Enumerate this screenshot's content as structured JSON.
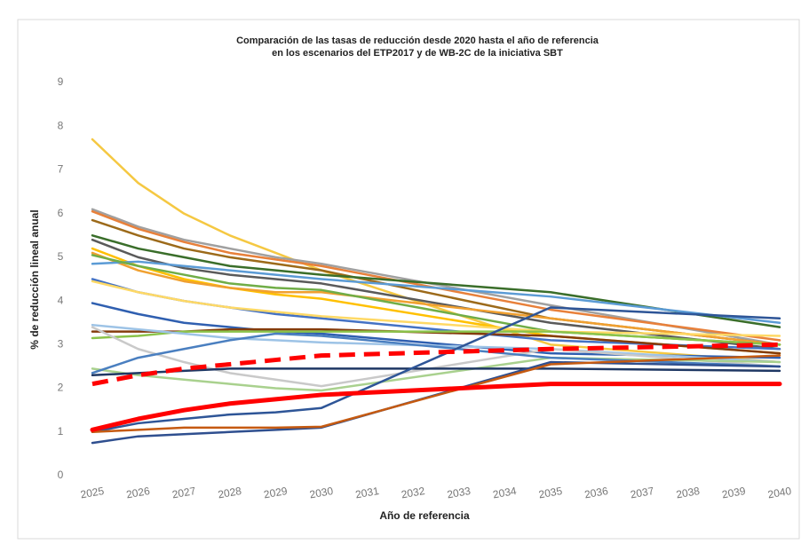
{
  "chart_data": {
    "type": "line",
    "title": [
      "Comparación de las tasas de reducción desde 2020 hasta el año de referencia",
      "en los escenarios del ETP2017 y de WB-2C de la iniciativa SBT"
    ],
    "x_label": "Año de referencia",
    "y_label": "% de reducción lineal anual",
    "x": [
      2025,
      2026,
      2027,
      2028,
      2029,
      2030,
      2035,
      2040
    ],
    "xlim": [
      2025,
      2040
    ],
    "xticks": [
      2025,
      2026,
      2027,
      2028,
      2029,
      2030,
      2031,
      2032,
      2033,
      2034,
      2035,
      2036,
      2037,
      2038,
      2039,
      2040
    ],
    "ylim": [
      0,
      9
    ],
    "yticks": [
      0,
      1,
      2,
      3,
      4,
      5,
      6,
      7,
      8,
      9
    ],
    "grid": false,
    "series": [
      {
        "color": "#f5c842",
        "values": [
          7.7,
          6.7,
          6.0,
          5.5,
          5.1,
          4.7,
          3.0,
          2.6
        ]
      },
      {
        "color": "#a0a0a0",
        "values": [
          6.1,
          5.7,
          5.4,
          5.2,
          5.0,
          4.85,
          3.9,
          3.0
        ]
      },
      {
        "color": "#e8803a",
        "values": [
          6.05,
          5.65,
          5.35,
          5.1,
          4.95,
          4.8,
          3.8,
          3.1
        ]
      },
      {
        "color": "#9c6a1a",
        "values": [
          5.85,
          5.5,
          5.2,
          5.0,
          4.85,
          4.7,
          3.6,
          3.0
        ]
      },
      {
        "color": "#3a6e2a",
        "values": [
          5.5,
          5.2,
          5.0,
          4.8,
          4.7,
          4.6,
          4.2,
          3.4
        ]
      },
      {
        "color": "#5a5a5a",
        "values": [
          5.4,
          5.0,
          4.75,
          4.6,
          4.5,
          4.4,
          3.5,
          2.9
        ]
      },
      {
        "color": "#ffc000",
        "values": [
          5.2,
          4.8,
          4.5,
          4.3,
          4.15,
          4.05,
          3.2,
          2.8
        ]
      },
      {
        "color": "#f0a030",
        "values": [
          5.1,
          4.7,
          4.45,
          4.3,
          4.2,
          4.2,
          3.6,
          3.0
        ]
      },
      {
        "color": "#5b9bd5",
        "values": [
          4.85,
          4.9,
          4.8,
          4.7,
          4.6,
          4.5,
          4.1,
          3.5
        ]
      },
      {
        "color": "#70ad47",
        "values": [
          5.05,
          4.8,
          4.6,
          4.4,
          4.3,
          4.25,
          3.3,
          3.0
        ]
      },
      {
        "color": "#4472c4",
        "values": [
          4.5,
          4.2,
          4.0,
          3.85,
          3.7,
          3.6,
          3.1,
          2.9
        ]
      },
      {
        "color": "#ffd966",
        "values": [
          4.45,
          4.2,
          4.0,
          3.85,
          3.75,
          3.65,
          3.3,
          3.2
        ]
      },
      {
        "color": "#2f5fb0",
        "values": [
          3.95,
          3.7,
          3.5,
          3.4,
          3.3,
          3.25,
          2.8,
          2.7
        ]
      },
      {
        "color": "#843c0c",
        "values": [
          3.3,
          3.3,
          3.3,
          3.35,
          3.35,
          3.35,
          3.2,
          2.8
        ]
      },
      {
        "color": "#8bc34a",
        "values": [
          3.15,
          3.2,
          3.3,
          3.3,
          3.3,
          3.3,
          3.3,
          3.0
        ]
      },
      {
        "color": "#9dc3e6",
        "values": [
          3.45,
          3.35,
          3.25,
          3.15,
          3.1,
          3.05,
          2.9,
          2.6
        ]
      },
      {
        "color": "#c9c9c9",
        "values": [
          3.4,
          2.9,
          2.6,
          2.35,
          2.2,
          2.05,
          2.9,
          2.5
        ]
      },
      {
        "color": "#a9d18e",
        "values": [
          2.45,
          2.3,
          2.2,
          2.1,
          2.0,
          1.95,
          2.7,
          2.6
        ]
      },
      {
        "color": "#4a7fc0",
        "values": [
          2.35,
          2.7,
          2.9,
          3.1,
          3.25,
          3.2,
          2.7,
          2.5
        ]
      },
      {
        "color": "#1f3864",
        "values": [
          2.3,
          2.35,
          2.4,
          2.45,
          2.45,
          2.45,
          2.45,
          2.4
        ]
      },
      {
        "color": "#2e5597",
        "values": [
          1.0,
          1.2,
          1.3,
          1.4,
          1.45,
          1.55,
          3.85,
          3.6
        ]
      },
      {
        "color": "#2f4f8f",
        "values": [
          0.75,
          0.9,
          0.95,
          1.0,
          1.05,
          1.1,
          2.6,
          2.5
        ]
      },
      {
        "color": "#c55a11",
        "values": [
          1.0,
          1.05,
          1.1,
          1.1,
          1.1,
          1.12,
          2.55,
          2.75
        ]
      },
      {
        "color": "#ff0000",
        "linewidth": 5,
        "values": [
          1.05,
          1.3,
          1.5,
          1.65,
          1.75,
          1.85,
          2.1,
          2.1
        ]
      },
      {
        "color": "#ff0000",
        "linewidth": 5,
        "dashed": true,
        "values": [
          2.1,
          2.3,
          2.45,
          2.55,
          2.65,
          2.75,
          2.9,
          3.0
        ]
      }
    ]
  }
}
